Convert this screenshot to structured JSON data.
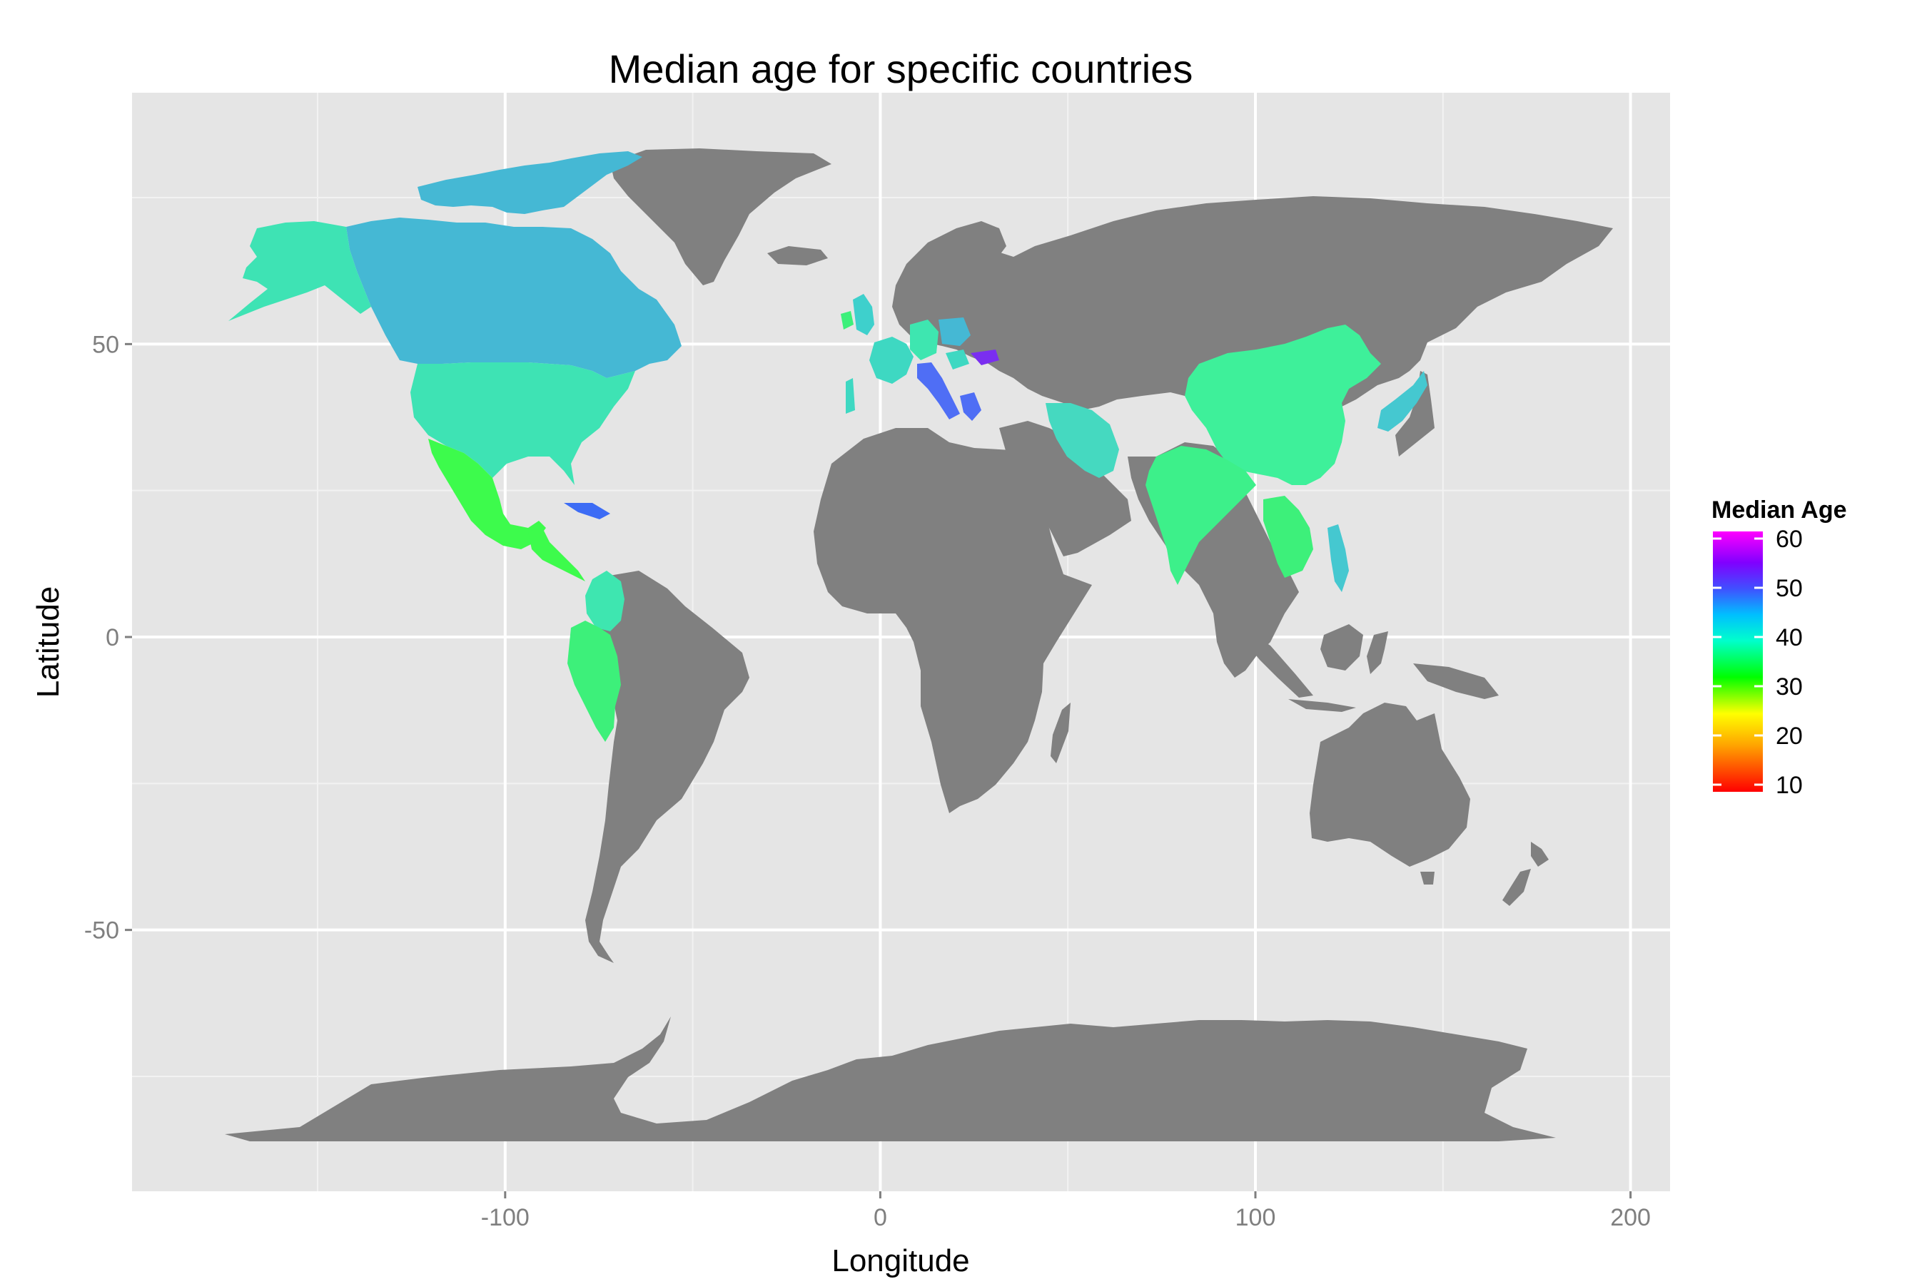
{
  "title": "Median age for specific countries",
  "xlabel": "Longitude",
  "ylabel": "Latitude",
  "chart_data": {
    "type": "choropleth-map",
    "title": "Median age for specific countries",
    "xlabel": "Longitude",
    "ylabel": "Latitude",
    "xlim": [
      -200,
      210
    ],
    "ylim": [
      -94,
      92
    ],
    "x_ticks": [
      -100,
      0,
      100,
      200
    ],
    "y_ticks": [
      -50,
      0,
      50
    ],
    "grid": true,
    "legend": {
      "title": "Median Age",
      "position": "right",
      "range": [
        10,
        60
      ],
      "ticks": [
        10,
        20,
        30,
        40,
        50,
        60
      ],
      "colors": [
        "#ff0000",
        "#ffa500",
        "#ffff00",
        "#00ff00",
        "#00ffcc",
        "#00bfff",
        "#4050ff",
        "#8000ff",
        "#ff00ff"
      ]
    },
    "no_data_color": "#808080",
    "panel_color": "#e5e5e5",
    "countries": [
      {
        "name": "Canada",
        "value": 41,
        "color": "#45b8d4"
      },
      {
        "name": "United States",
        "value": 37,
        "color": "#3ee3b4"
      },
      {
        "name": "Mexico",
        "value": 27,
        "color": "#3dfb4c"
      },
      {
        "name": "Central America",
        "value": 26,
        "color": "#3dfb4c"
      },
      {
        "name": "Cuba",
        "value": 42,
        "color": "#3d6cf5"
      },
      {
        "name": "Colombia",
        "value": 34,
        "color": "#3ee6b0"
      },
      {
        "name": "Peru",
        "value": 29,
        "color": "#3df07a"
      },
      {
        "name": "Ireland",
        "value": 33,
        "color": "#3df07a"
      },
      {
        "name": "United Kingdom",
        "value": 40,
        "color": "#3ed0cc"
      },
      {
        "name": "France",
        "value": 40,
        "color": "#3ed8c2"
      },
      {
        "name": "Germany",
        "value": 46,
        "color": "#3ee6b0"
      },
      {
        "name": "Poland",
        "value": 40,
        "color": "#45b8d4"
      },
      {
        "name": "Portugal",
        "value": 41,
        "color": "#3ed8c2"
      },
      {
        "name": "Italy",
        "value": 44,
        "color": "#4f6ef5"
      },
      {
        "name": "Hungary",
        "value": 42,
        "color": "#3ed8c2"
      },
      {
        "name": "Ukraine",
        "value": 54,
        "color": "#7a2ef0"
      },
      {
        "name": "Greece",
        "value": 44,
        "color": "#4f6ef5"
      },
      {
        "name": "Iran",
        "value": 36,
        "color": "#45d9c0"
      },
      {
        "name": "India",
        "value": 28,
        "color": "#3df08a"
      },
      {
        "name": "China",
        "value": 32,
        "color": "#3ef09a"
      },
      {
        "name": "Japan",
        "value": 46,
        "color": "#45c8d0"
      },
      {
        "name": "Vietnam",
        "value": 30,
        "color": "#3df07a"
      },
      {
        "name": "Philippines",
        "value": 40,
        "color": "#45c8d0"
      }
    ]
  }
}
